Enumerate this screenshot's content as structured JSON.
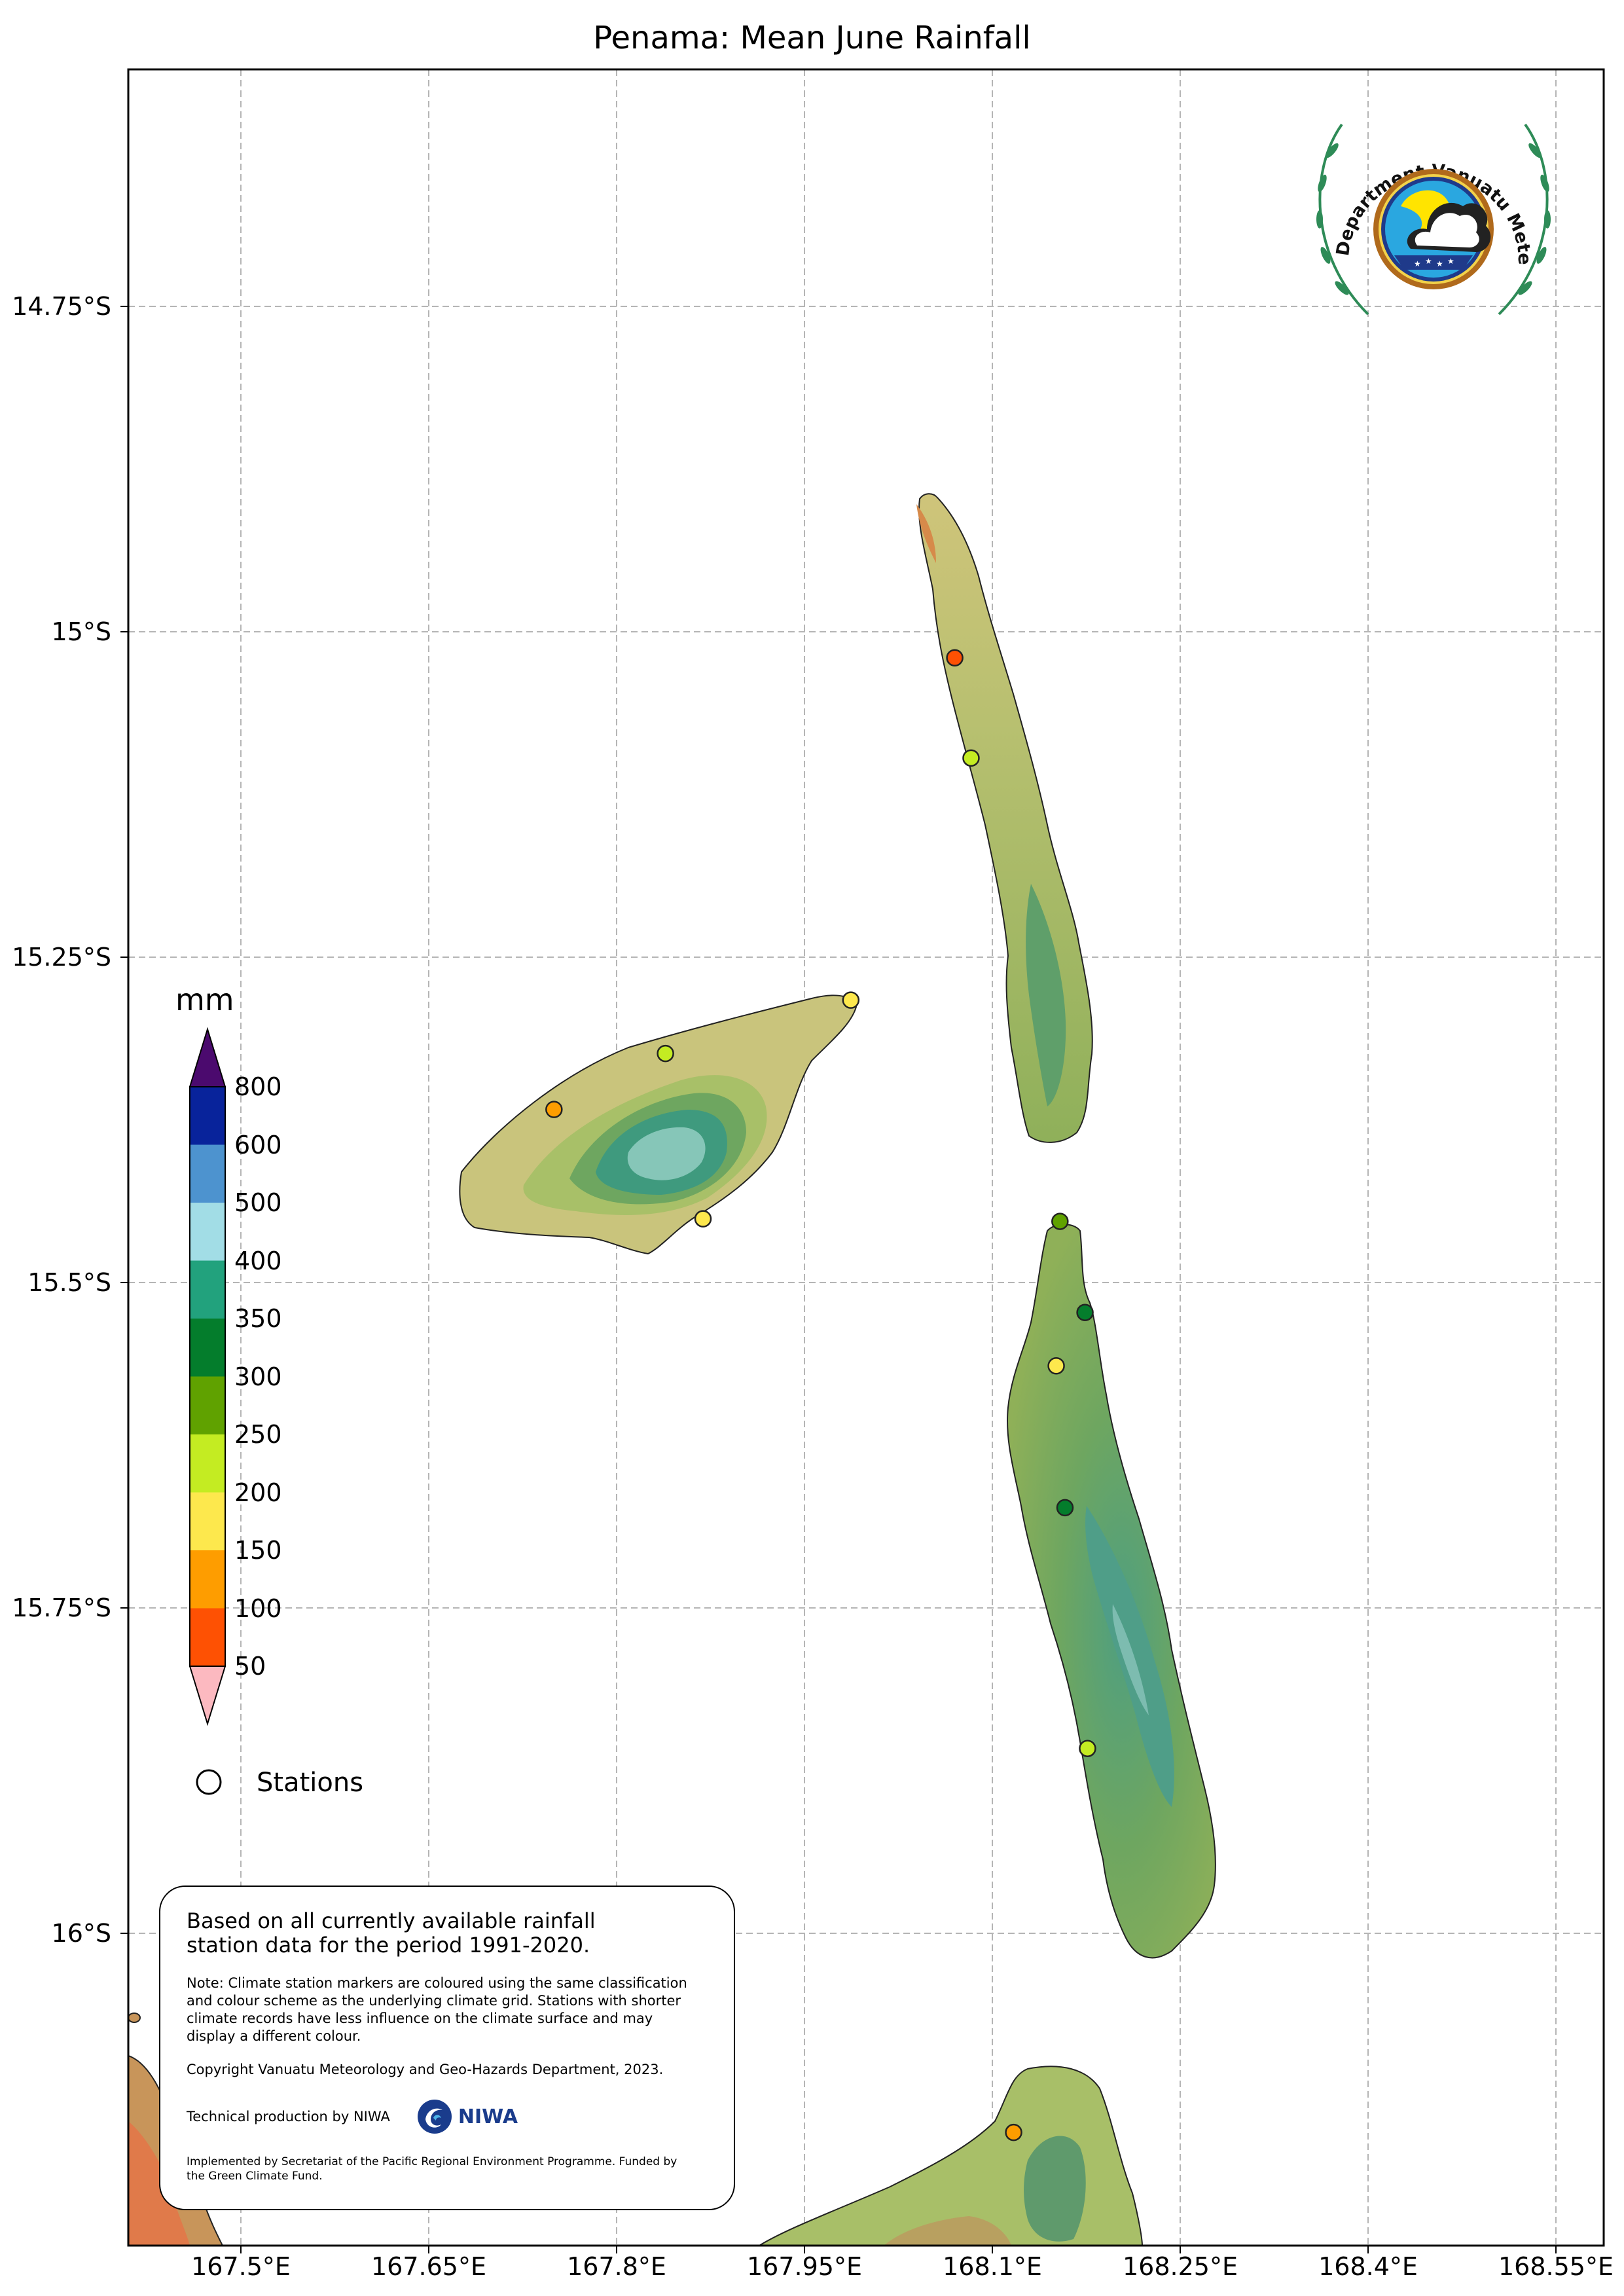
{
  "title": "Penama: Mean June Rainfall",
  "lat_ticks": [
    {
      "value": -14.75,
      "label": "14.75°S"
    },
    {
      "value": -15.0,
      "label": "15°S"
    },
    {
      "value": -15.25,
      "label": "15.25°S"
    },
    {
      "value": -15.5,
      "label": "15.5°S"
    },
    {
      "value": -15.75,
      "label": "15.75°S"
    },
    {
      "value": -16.0,
      "label": "16°S"
    }
  ],
  "lon_ticks": [
    {
      "value": 167.5,
      "label": "167.5°E"
    },
    {
      "value": 167.65,
      "label": "167.65°E"
    },
    {
      "value": 167.8,
      "label": "167.8°E"
    },
    {
      "value": 167.95,
      "label": "167.95°E"
    },
    {
      "value": 168.1,
      "label": "168.1°E"
    },
    {
      "value": 168.25,
      "label": "168.25°E"
    },
    {
      "value": 168.4,
      "label": "168.4°E"
    },
    {
      "value": 168.55,
      "label": "168.55°E"
    }
  ],
  "colorbar": {
    "unit": "mm",
    "labels": [
      "800",
      "600",
      "500",
      "400",
      "350",
      "300",
      "250",
      "200",
      "150",
      "100",
      "50"
    ],
    "bins": [
      {
        "range": "> 800",
        "color": "#4b0a6e"
      },
      {
        "range": "600-800",
        "color": "#08239b"
      },
      {
        "range": "500-600",
        "color": "#4d93cf"
      },
      {
        "range": "400-500",
        "color": "#a2dde6"
      },
      {
        "range": "350-400",
        "color": "#22a27d"
      },
      {
        "range": "300-350",
        "color": "#047d2c"
      },
      {
        "range": "250-300",
        "color": "#60a200"
      },
      {
        "range": "200-250",
        "color": "#c4ec22"
      },
      {
        "range": "150-200",
        "color": "#fde84d"
      },
      {
        "range": "100-150",
        "color": "#fe9d00"
      },
      {
        "range": "50-100",
        "color": "#fe5103"
      },
      {
        "range": "< 50",
        "color": "#fcb9c0"
      }
    ]
  },
  "legend": {
    "stations_label": "Stations"
  },
  "stations": [
    {
      "lon": 168.07,
      "lat": -15.02,
      "class": "50-100",
      "color": "#fe5103"
    },
    {
      "lon": 168.083,
      "lat": -15.097,
      "class": "200-250",
      "color": "#c4ec22"
    },
    {
      "lon": 167.987,
      "lat": -15.283,
      "class": "150-200",
      "color": "#fde84d"
    },
    {
      "lon": 167.839,
      "lat": -15.324,
      "class": "200-250",
      "color": "#c4ec22"
    },
    {
      "lon": 167.75,
      "lat": -15.367,
      "class": "100-150",
      "color": "#fe9d00"
    },
    {
      "lon": 167.869,
      "lat": -15.451,
      "class": "150-200",
      "color": "#fde84d"
    },
    {
      "lon": 168.154,
      "lat": -15.453,
      "class": "250-300",
      "color": "#60a200"
    },
    {
      "lon": 168.174,
      "lat": -15.523,
      "class": "300-350",
      "color": "#047d2c"
    },
    {
      "lon": 168.151,
      "lat": -15.564,
      "class": "150-200",
      "color": "#fde84d"
    },
    {
      "lon": 168.158,
      "lat": -15.673,
      "class": "300-350",
      "color": "#047d2c"
    },
    {
      "lon": 168.176,
      "lat": -15.858,
      "class": "200-250",
      "color": "#c4ec22"
    },
    {
      "lon": 168.117,
      "lat": -16.153,
      "class": "100-150",
      "color": "#fe9d00"
    }
  ],
  "info": {
    "main": "Based on all currently available rainfall station data for the period 1991-2020.",
    "note": "Note: Climate station markers are coloured using the same classification and colour scheme as the underlying climate grid. Stations with shorter climate records have less influence on the climate surface and may display a different colour.",
    "copyright": "Copyright Vanuatu Meteorology and Geo-Hazards Department, 2023.",
    "technical": "Technical production by NIWA",
    "niwa_logo_text": "NIWA",
    "implemented": "Implemented by Secretariat of the Pacific Regional Environment Programme. Funded by the Green Climate Fund."
  },
  "logo": {
    "ring_text": "Department Vanuatu Meteorology and Geo-Hazards"
  }
}
